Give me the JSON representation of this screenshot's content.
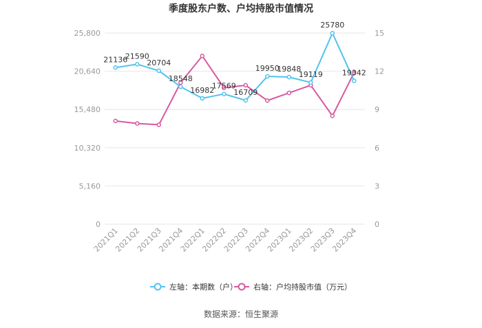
{
  "chart_data": {
    "type": "line",
    "title": "季度股东户数、户均持股市值情况",
    "categories": [
      "2021Q1",
      "2021Q2",
      "2021Q3",
      "2021Q4",
      "2022Q1",
      "2022Q2",
      "2022Q3",
      "2022Q4",
      "2023Q1",
      "2023Q2",
      "2023Q3",
      "2023Q4"
    ],
    "left_axis": {
      "ylim": [
        0,
        25800
      ],
      "ticks": [
        "0",
        "5,160",
        "10,320",
        "15,480",
        "20,640",
        "25,800"
      ]
    },
    "right_axis": {
      "ylim": [
        0,
        15
      ],
      "ticks": [
        "0",
        "3",
        "6",
        "9",
        "12",
        "15"
      ]
    },
    "series": [
      {
        "name": "左轴：本期数（户）",
        "axis": "left",
        "color": "#4fc3f0",
        "values": [
          21136,
          21590,
          20704,
          18548,
          16982,
          17569,
          16709,
          19950,
          19848,
          19119,
          25780,
          19342
        ],
        "labels": [
          "21136",
          "21590",
          "20704",
          "18548",
          "16982",
          "17569",
          "16709",
          "19950",
          "19848",
          "19119",
          "25780",
          "19342"
        ]
      },
      {
        "name": "右轴：户均持股市值（万元）",
        "axis": "right",
        "color": "#d9579f",
        "values": [
          8.1,
          7.9,
          7.8,
          11.1,
          13.2,
          10.7,
          10.9,
          9.7,
          10.3,
          10.9,
          8.5,
          11.9
        ]
      }
    ],
    "legend_position": "bottom",
    "grid": "horizontal"
  },
  "source_text": "数据来源：恒生聚源"
}
